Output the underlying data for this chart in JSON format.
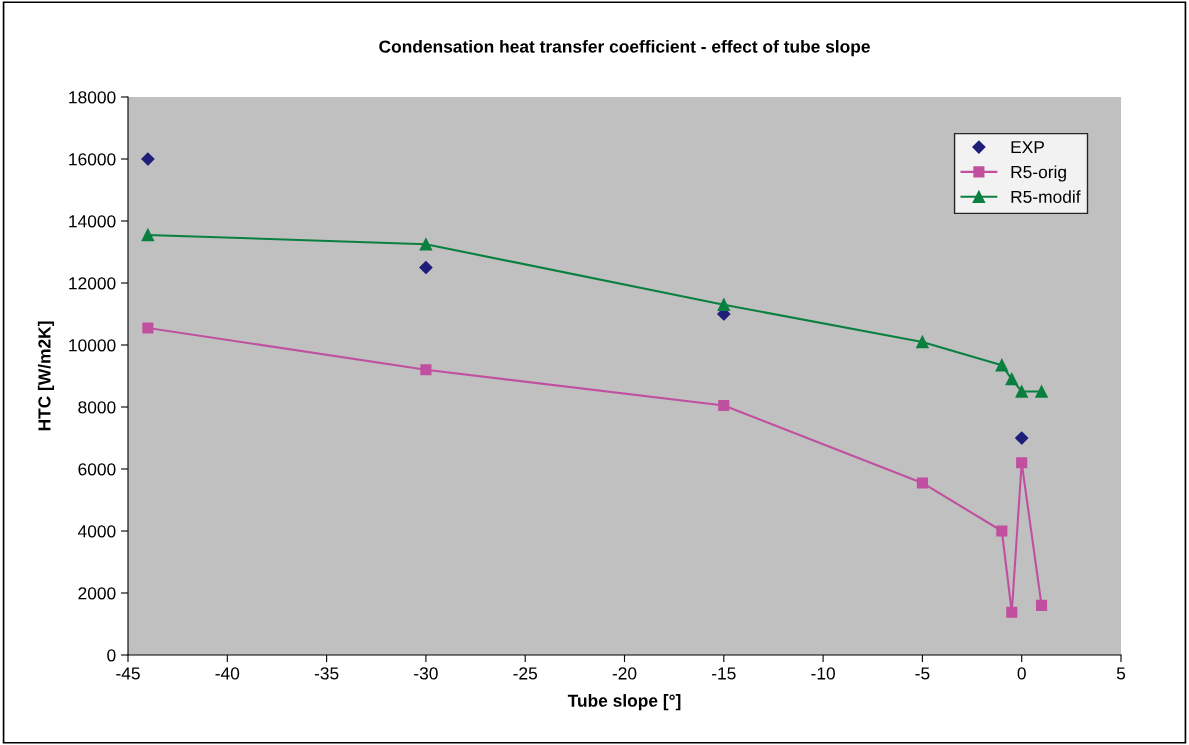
{
  "chart_data": {
    "type": "line",
    "title": "Condensation heat transfer coefficient - effect of tube slope",
    "xlabel": "Tube slope [°]",
    "ylabel": "HTC [W/m2K]",
    "xlim": [
      -45,
      5
    ],
    "xticks": [
      -45,
      -40,
      -35,
      -30,
      -25,
      -20,
      -15,
      -10,
      -5,
      0,
      5
    ],
    "ylim": [
      0,
      18000
    ],
    "yticks": [
      0,
      2000,
      4000,
      6000,
      8000,
      10000,
      12000,
      14000,
      16000,
      18000
    ],
    "grid": false,
    "legend": "top right",
    "series": [
      {
        "name": "EXP",
        "type": "scatter",
        "marker": "diamond",
        "color": "#1f1f7a",
        "x": [
          -44,
          -30,
          -15,
          0
        ],
        "values": [
          16000,
          12500,
          11000,
          7000
        ]
      },
      {
        "name": "R5-orig",
        "marker": "square",
        "color": "#c0509f",
        "x": [
          -44,
          -30,
          -15,
          -5,
          -1,
          -0.5,
          0,
          1
        ],
        "values": [
          10550,
          9200,
          8050,
          5550,
          4000,
          1380,
          6200,
          1600
        ]
      },
      {
        "name": "R5-modif",
        "marker": "triangle",
        "color": "#0a8040",
        "x": [
          -44,
          -30,
          -15,
          -5,
          -1,
          -0.5,
          0,
          1
        ],
        "values": [
          13550,
          13250,
          11300,
          10100,
          9350,
          8900,
          8500,
          8500
        ]
      }
    ]
  }
}
